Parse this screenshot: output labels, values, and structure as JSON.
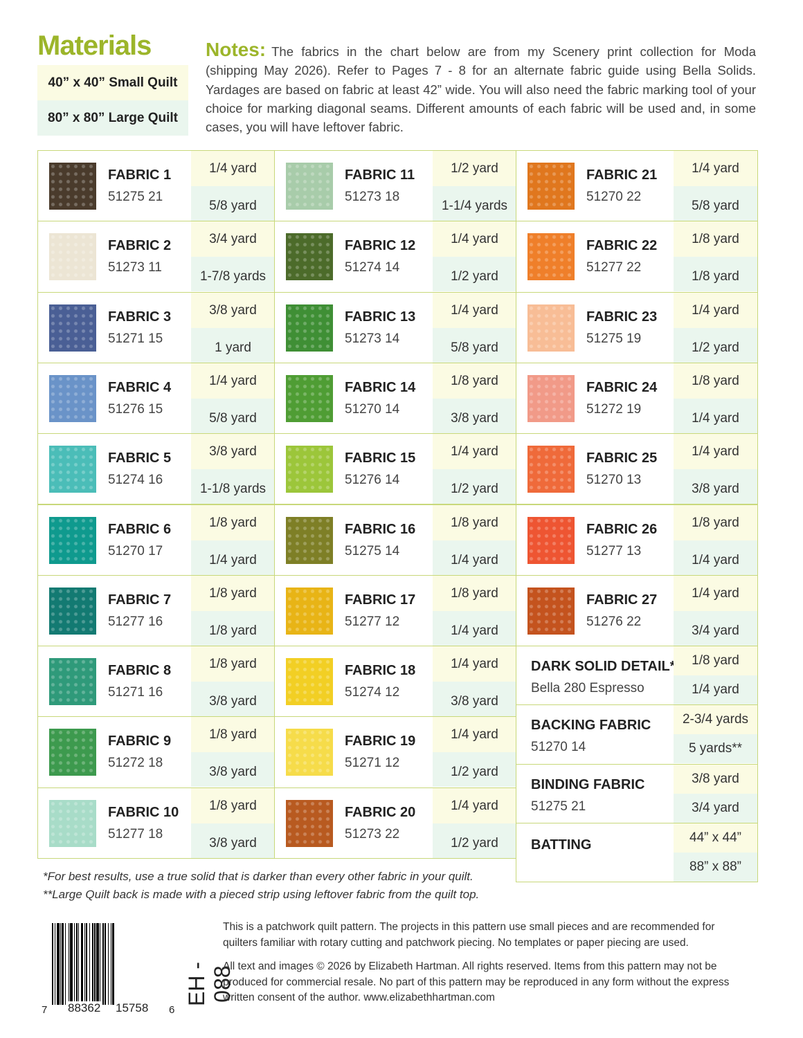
{
  "header": {
    "title": "Materials",
    "small_quilt": "40” x 40” Small Quilt",
    "large_quilt": "80” x 80” Large Quilt",
    "notes_label": "Notes:",
    "notes_text": "The fabrics in the chart below are from my Scenery print collection for Moda (shipping May 2026). Refer to Pages 7 - 8 for an alternate fabric guide using Bella Solids. Yardages are based on fabric at least 42” wide. You will also need the fabric marking tool of your choice for marking diagonal seams. Different amounts of each fabric will be used and, in some cases, you will have leftover fabric."
  },
  "colors": {
    "accent": "#9cb52a",
    "small_bg": "#fbfbe3",
    "large_bg": "#eaf6ee",
    "border": "#c8d87a"
  },
  "fabrics": [
    {
      "name": "FABRIC 1",
      "code": "51275 21",
      "small": "1/4 yard",
      "large": "5/8 yard",
      "color": "#4a3b2c"
    },
    {
      "name": "FABRIC 2",
      "code": "51273 11",
      "small": "3/4 yard",
      "large": "1-7/8 yards",
      "color": "#ece5d4"
    },
    {
      "name": "FABRIC 3",
      "code": "51271 15",
      "small": "3/8 yard",
      "large": "1 yard",
      "color": "#4a5f95"
    },
    {
      "name": "FABRIC 4",
      "code": "51276 15",
      "small": "1/4 yard",
      "large": "5/8 yard",
      "color": "#6a93c8"
    },
    {
      "name": "FABRIC 5",
      "code": "51274 16",
      "small": "3/8 yard",
      "large": "1-1/8 yards",
      "color": "#4bbdb8"
    },
    {
      "name": "FABRIC 6",
      "code": "51270 17",
      "small": "1/8 yard",
      "large": "1/4 yard",
      "color": "#0f9a8e"
    },
    {
      "name": "FABRIC 7",
      "code": "51277 16",
      "small": "1/8 yard",
      "large": "1/8 yard",
      "color": "#137a72"
    },
    {
      "name": "FABRIC 8",
      "code": "51271 16",
      "small": "1/8 yard",
      "large": "3/8 yard",
      "color": "#2f9a7a"
    },
    {
      "name": "FABRIC 9",
      "code": "51272 18",
      "small": "1/8 yard",
      "large": "3/8 yard",
      "color": "#3d9a4e"
    },
    {
      "name": "FABRIC 10",
      "code": "51277 18",
      "small": "1/8 yard",
      "large": "3/8 yard",
      "color": "#a8dcc8"
    },
    {
      "name": "FABRIC 11",
      "code": "51273 18",
      "small": "1/2 yard",
      "large": "1-1/4 yards",
      "color": "#a8ccaa"
    },
    {
      "name": "FABRIC 12",
      "code": "51274 14",
      "small": "1/4 yard",
      "large": "1/2 yard",
      "color": "#4c6b2a"
    },
    {
      "name": "FABRIC 13",
      "code": "51273 14",
      "small": "1/4 yard",
      "large": "5/8 yard",
      "color": "#3f8f35"
    },
    {
      "name": "FABRIC 14",
      "code": "51270 14",
      "small": "1/8 yard",
      "large": "3/8 yard",
      "color": "#4f9d34"
    },
    {
      "name": "FABRIC 15",
      "code": "51276 14",
      "small": "1/4 yard",
      "large": "1/2 yard",
      "color": "#9cc63a"
    },
    {
      "name": "FABRIC 16",
      "code": "51275 14",
      "small": "1/8 yard",
      "large": "1/4 yard",
      "color": "#7e7f26"
    },
    {
      "name": "FABRIC 17",
      "code": "51277 12",
      "small": "1/8 yard",
      "large": "1/4 yard",
      "color": "#e8b416"
    },
    {
      "name": "FABRIC 18",
      "code": "51274 12",
      "small": "1/4 yard",
      "large": "3/8 yard",
      "color": "#f2cf24"
    },
    {
      "name": "FABRIC 19",
      "code": "51271 12",
      "small": "1/4 yard",
      "large": "1/2 yard",
      "color": "#f6dc4a"
    },
    {
      "name": "FABRIC 20",
      "code": "51273 22",
      "small": "1/4 yard",
      "large": "1/2 yard",
      "color": "#b85a20"
    },
    {
      "name": "FABRIC 21",
      "code": "51270 22",
      "small": "1/4 yard",
      "large": "5/8 yard",
      "color": "#e0771e"
    },
    {
      "name": "FABRIC 22",
      "code": "51277 22",
      "small": "1/8 yard",
      "large": "1/8 yard",
      "color": "#ef7f2a"
    },
    {
      "name": "FABRIC 23",
      "code": "51275 19",
      "small": "1/4 yard",
      "large": "1/2 yard",
      "color": "#f8bd96"
    },
    {
      "name": "FABRIC 24",
      "code": "51272 19",
      "small": "1/8 yard",
      "large": "1/4 yard",
      "color": "#f19a88"
    },
    {
      "name": "FABRIC 25",
      "code": "51270 13",
      "small": "1/4 yard",
      "large": "3/8 yard",
      "color": "#ef6a3a"
    },
    {
      "name": "FABRIC 26",
      "code": "51277 13",
      "small": "1/8 yard",
      "large": "1/4 yard",
      "color": "#ee5532"
    },
    {
      "name": "FABRIC 27",
      "code": "51276 22",
      "small": "1/4 yard",
      "large": "3/4 yard",
      "color": "#c4531e"
    }
  ],
  "extras": [
    {
      "name": "DARK SOLID DETAIL*",
      "code": "Bella 280 Espresso",
      "small": "1/8 yard",
      "large": "1/4 yard"
    },
    {
      "name": "BACKING FABRIC",
      "code": "51270 14",
      "small": "2-3/4 yards",
      "large": "5 yards**"
    },
    {
      "name": "BINDING FABRIC",
      "code": "51275 21",
      "small": "3/8 yard",
      "large": "3/4 yard"
    },
    {
      "name": "BATTING",
      "code": "",
      "small": "44” x 44”",
      "large": "88” x 88”"
    }
  ],
  "footnotes": [
    "*For best results, use a true solid that is darker than every other fabric in your quilt.",
    "**Large Quilt back is made with a pieced strip using leftover fabric from the quilt top."
  ],
  "legal": [
    "This is a patchwork quilt pattern. The projects in this pattern use small pieces and are recommended for quilters familiar with rotary cutting and patchwork piecing. No templates or paper piecing are used.",
    "All text and images © 2026 by Elizabeth Hartman. All rights reserved. Items from this pattern may not be produced for commercial resale. No part of this pattern may be reproduced in any form without the express written consent of the author. www.elizabethhartman.com"
  ],
  "barcode": {
    "lead": "7",
    "left": "88362",
    "right": "15758",
    "check": "6",
    "sku": "EH - 088"
  }
}
